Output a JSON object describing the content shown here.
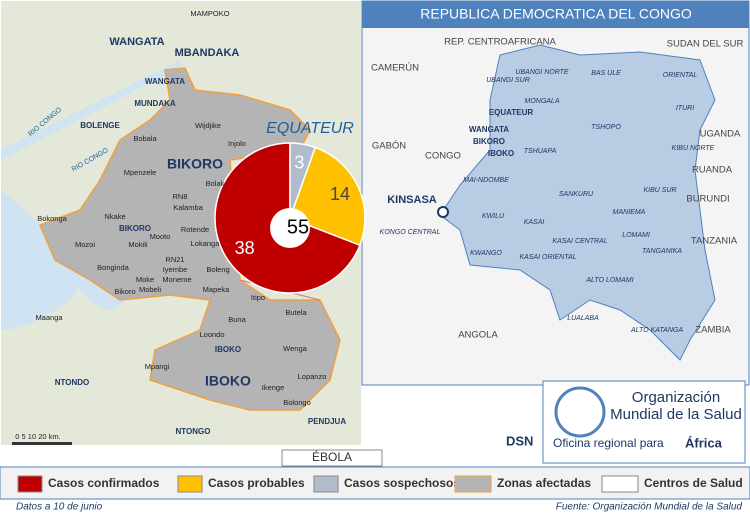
{
  "map": {
    "title": "ÉBOLA",
    "dsn": "DSN",
    "labels": [
      "MAMPOKO",
      "WANGATA",
      "MBANDAKA",
      "WANGATA",
      "MUNDAKA",
      "BOLENGE",
      "RIO CONGO",
      "RIO CONGO",
      "Wijdjike",
      "Bobala",
      "Injolo",
      "BIKORO",
      "Mpenzele",
      "Bolak",
      "RN8",
      "Kalamba",
      "Nkake",
      "Mooto",
      "Rotende",
      "Bokonga",
      "BIKORO",
      "Mozoi",
      "Mokili",
      "Lokanga",
      "RN21",
      "Bonginda",
      "Iyembe",
      "Moke",
      "Moneme",
      "Boleng",
      "Mobeli",
      "Mapeka",
      "Bikoro",
      "Itipo",
      "Butela",
      "Buna",
      "Maanga",
      "Loondo",
      "Wenga",
      "IBOKO",
      "Mpangi",
      "Lopanzo",
      "IBOKO",
      "Ikenge",
      "NTONDO",
      "Bolongo",
      "PENDJUA",
      "NTONGO",
      "EQUATEUR",
      "0 5 10 20 km."
    ],
    "legend": [
      {
        "label": "Zonas afectadas",
        "color": "#b4b4b4"
      },
      {
        "label": "Centros de Salud",
        "color": "#ffffff"
      }
    ]
  },
  "inset": {
    "title": "REPUBLICA DEMOCRATICA DEL CONGO",
    "labels": [
      "REP. CENTROAFRICANA",
      "SUDAN DEL SUR",
      "CAMERÚN",
      "UBANGI SUR",
      "UBANGI NORTE",
      "BAS ULE",
      "ORIENTAL",
      "MONGALA",
      "ITURI",
      "EQUATEUR",
      "UGANDA",
      "WANGATA",
      "BIKORO",
      "IBOKO",
      "TSHOPO",
      "GABÓN",
      "CONGO",
      "TSHUAPA",
      "KIBU NORTE",
      "RUANDA",
      "MAI-NDOMBE",
      "BURUNDI",
      "KIBU SUR",
      "KINSASA",
      "SANKURU",
      "MANIEMA",
      "KWILU",
      "KASAI",
      "KONGO CENTRAL",
      "KASAI CENTRAL",
      "LOMAMI",
      "TANZANIA",
      "KWANGO",
      "KASAI ORIENTAL",
      "TANGANIKA",
      "ALTO LOMAMI",
      "ANGOLA",
      "LUALABA",
      "ALTO KATANGA",
      "ZAMBIA"
    ]
  },
  "who": {
    "name": [
      "Organización",
      "Mundial de la Salud"
    ],
    "office": "Oficina regional para",
    "region": "África"
  },
  "footer": {
    "date": "Datos a 10 de junio",
    "source": "Fuente: Organización Mundial de la Salud"
  },
  "chart_data": {
    "type": "pie",
    "categories": [
      "Casos confirmados",
      "Casos probables",
      "Casos sospechosos"
    ],
    "values": [
      38,
      14,
      3
    ],
    "colors": [
      "#c00000",
      "#ffc000",
      "#b0bccb"
    ],
    "total": 55
  }
}
